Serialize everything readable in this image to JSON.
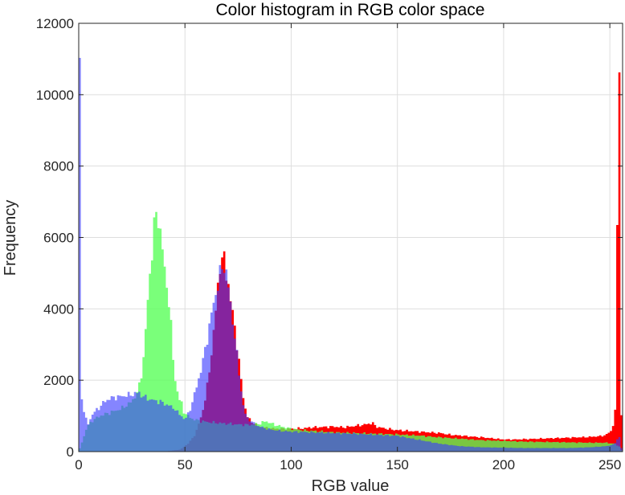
{
  "chart_data": {
    "type": "area",
    "title": "Color histogram in RGB color space",
    "xlabel": "RGB value",
    "ylabel": "Frequency",
    "xlim": [
      0,
      256
    ],
    "ylim": [
      0,
      12000
    ],
    "xticks": [
      0,
      50,
      100,
      150,
      200,
      250
    ],
    "yticks": [
      0,
      2000,
      4000,
      6000,
      8000,
      10000,
      12000
    ],
    "grid": true,
    "box": true,
    "bins": 256,
    "series": [
      {
        "color": "#ff0000",
        "opacity": 1,
        "points": [
          [
            0,
            0
          ],
          [
            8,
            0
          ],
          [
            20,
            0
          ],
          [
            30,
            0
          ],
          [
            40,
            0
          ],
          [
            48,
            60
          ],
          [
            52,
            250
          ],
          [
            55,
            500
          ],
          [
            58,
            1050
          ],
          [
            60,
            1600
          ],
          [
            62,
            2500
          ],
          [
            64,
            3600
          ],
          [
            65,
            4300
          ],
          [
            66,
            5000
          ],
          [
            67,
            5400
          ],
          [
            68,
            5350
          ],
          [
            69,
            5000
          ],
          [
            70,
            4700
          ],
          [
            71,
            4200
          ],
          [
            72,
            3900
          ],
          [
            73,
            3500
          ],
          [
            74,
            3000
          ],
          [
            75,
            2500
          ],
          [
            76,
            2000
          ],
          [
            77,
            1550
          ],
          [
            78,
            1200
          ],
          [
            80,
            900
          ],
          [
            82,
            800
          ],
          [
            85,
            700
          ],
          [
            90,
            650
          ],
          [
            95,
            640
          ],
          [
            100,
            640
          ],
          [
            105,
            650
          ],
          [
            110,
            680
          ],
          [
            115,
            690
          ],
          [
            120,
            700
          ],
          [
            125,
            680
          ],
          [
            130,
            720
          ],
          [
            135,
            760
          ],
          [
            138,
            800
          ],
          [
            140,
            700
          ],
          [
            145,
            640
          ],
          [
            150,
            600
          ],
          [
            155,
            580
          ],
          [
            160,
            560
          ],
          [
            165,
            540
          ],
          [
            170,
            520
          ],
          [
            175,
            470
          ],
          [
            180,
            450
          ],
          [
            185,
            420
          ],
          [
            190,
            400
          ],
          [
            195,
            370
          ],
          [
            200,
            340
          ],
          [
            205,
            340
          ],
          [
            210,
            350
          ],
          [
            215,
            360
          ],
          [
            220,
            370
          ],
          [
            225,
            380
          ],
          [
            230,
            390
          ],
          [
            235,
            400
          ],
          [
            240,
            410
          ],
          [
            245,
            430
          ],
          [
            248,
            460
          ],
          [
            251,
            600
          ],
          [
            252,
            900
          ],
          [
            253,
            1350
          ],
          [
            254,
            11150
          ],
          [
            255,
            1000
          ],
          [
            256,
            0
          ]
        ]
      },
      {
        "color": "#55ff55",
        "opacity": 0.78,
        "points": [
          [
            0,
            0
          ],
          [
            2,
            350
          ],
          [
            4,
            700
          ],
          [
            6,
            850
          ],
          [
            10,
            1000
          ],
          [
            15,
            1100
          ],
          [
            20,
            1200
          ],
          [
            25,
            1400
          ],
          [
            28,
            1700
          ],
          [
            30,
            2300
          ],
          [
            31,
            3000
          ],
          [
            32,
            3800
          ],
          [
            33,
            4600
          ],
          [
            34,
            5300
          ],
          [
            35,
            6000
          ],
          [
            36,
            6600
          ],
          [
            37,
            6500
          ],
          [
            38,
            6200
          ],
          [
            39,
            5700
          ],
          [
            40,
            5000
          ],
          [
            41,
            4700
          ],
          [
            42,
            4200
          ],
          [
            43,
            3500
          ],
          [
            44,
            2600
          ],
          [
            45,
            2000
          ],
          [
            46,
            1700
          ],
          [
            48,
            1350
          ],
          [
            50,
            1050
          ],
          [
            54,
            900
          ],
          [
            58,
            850
          ],
          [
            62,
            820
          ],
          [
            66,
            800
          ],
          [
            70,
            780
          ],
          [
            75,
            760
          ],
          [
            80,
            750
          ],
          [
            85,
            780
          ],
          [
            88,
            850
          ],
          [
            90,
            800
          ],
          [
            94,
            720
          ],
          [
            100,
            640
          ],
          [
            105,
            600
          ],
          [
            110,
            580
          ],
          [
            115,
            560
          ],
          [
            120,
            540
          ],
          [
            130,
            520
          ],
          [
            140,
            500
          ],
          [
            150,
            480
          ],
          [
            160,
            450
          ],
          [
            170,
            400
          ],
          [
            180,
            360
          ],
          [
            190,
            320
          ],
          [
            200,
            300
          ],
          [
            210,
            280
          ],
          [
            220,
            270
          ],
          [
            230,
            260
          ],
          [
            240,
            250
          ],
          [
            248,
            250
          ],
          [
            252,
            220
          ],
          [
            254,
            150
          ],
          [
            256,
            0
          ]
        ]
      },
      {
        "color": "#3a3aff",
        "opacity": 0.62,
        "points": [
          [
            0,
            10700
          ],
          [
            0.7,
            10700
          ],
          [
            1,
            1500
          ],
          [
            2,
            1150
          ],
          [
            3,
            900
          ],
          [
            4,
            700
          ],
          [
            6,
            1000
          ],
          [
            8,
            1150
          ],
          [
            10,
            1250
          ],
          [
            12,
            1400
          ],
          [
            15,
            1500
          ],
          [
            20,
            1550
          ],
          [
            25,
            1600
          ],
          [
            28,
            1650
          ],
          [
            30,
            1550
          ],
          [
            34,
            1450
          ],
          [
            38,
            1400
          ],
          [
            42,
            1300
          ],
          [
            45,
            1200
          ],
          [
            48,
            1000
          ],
          [
            50,
            900
          ],
          [
            52,
            1100
          ],
          [
            55,
            1700
          ],
          [
            58,
            2400
          ],
          [
            60,
            3000
          ],
          [
            62,
            3700
          ],
          [
            64,
            4300
          ],
          [
            66,
            4800
          ],
          [
            67,
            5100
          ],
          [
            68,
            5200
          ],
          [
            69,
            5000
          ],
          [
            70,
            4600
          ],
          [
            71,
            4100
          ],
          [
            72,
            3700
          ],
          [
            73,
            3200
          ],
          [
            74,
            2700
          ],
          [
            75,
            2200
          ],
          [
            76,
            1700
          ],
          [
            77,
            1300
          ],
          [
            78,
            1050
          ],
          [
            80,
            900
          ],
          [
            82,
            800
          ],
          [
            85,
            700
          ],
          [
            90,
            620
          ],
          [
            95,
            580
          ],
          [
            100,
            560
          ],
          [
            110,
            540
          ],
          [
            120,
            520
          ],
          [
            130,
            500
          ],
          [
            140,
            470
          ],
          [
            150,
            440
          ],
          [
            160,
            330
          ],
          [
            170,
            220
          ],
          [
            180,
            150
          ],
          [
            190,
            120
          ],
          [
            200,
            110
          ],
          [
            210,
            100
          ],
          [
            220,
            100
          ],
          [
            230,
            100
          ],
          [
            240,
            120
          ],
          [
            248,
            150
          ],
          [
            252,
            200
          ],
          [
            254,
            400
          ],
          [
            256,
            0
          ]
        ]
      }
    ]
  }
}
